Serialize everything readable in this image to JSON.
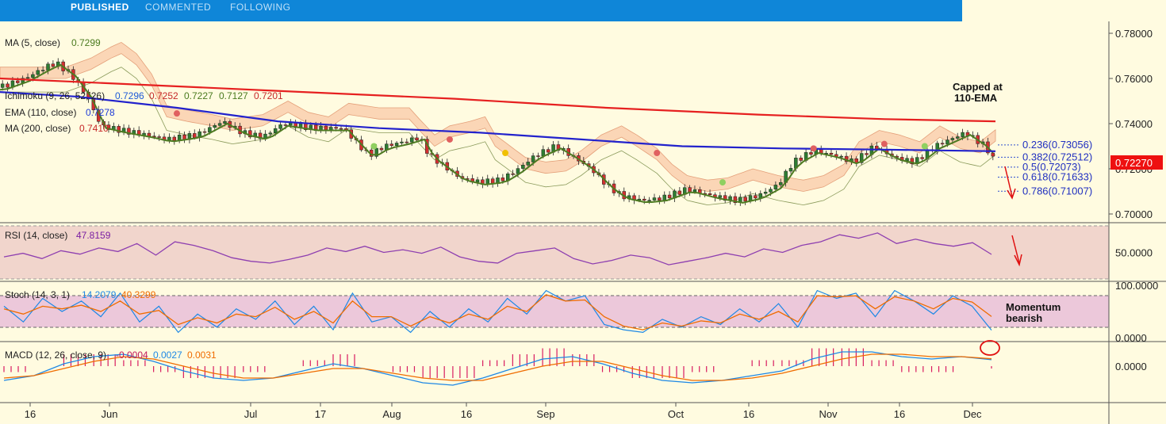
{
  "tabs": {
    "published": "PUBLISHED",
    "commented": "COMMENTED",
    "following": "FOLLOWING"
  },
  "legends": {
    "ma5": "MA (5, close)",
    "ma5_val": "0.7299",
    "ichi": "Ichimoku (9, 26, 52, 26)",
    "ichi_v1": "0.7296",
    "ichi_v2": "0.7252",
    "ichi_v3": "0.7227",
    "ichi_v4": "0.7127",
    "ichi_v5": "0.7201",
    "ema110": "EMA (110, close)",
    "ema110_val": "0.7278",
    "ma200": "MA (200, close)",
    "ma200_val": "0.7410",
    "rsi": "RSI (14, close)",
    "rsi_val": "47.8159",
    "stoch": "Stoch (14, 3, 1)",
    "stoch_v1": "14.2079",
    "stoch_v2": "40.3299",
    "macd": "MACD (12, 26, close, 9)",
    "macd_v1": "-0.0004",
    "macd_v2": "0.0027",
    "macd_v3": "0.0031"
  },
  "annotations": {
    "capped_line1": "Capped at",
    "capped_line2": "110-EMA",
    "momentum_line1": "Momentum",
    "momentum_line2": "bearish"
  },
  "current_price": "0.72270",
  "chart_data": [
    {
      "type": "candlestick",
      "ylim": [
        0.695,
        0.785
      ],
      "y_ticks": [
        "0.78000",
        "0.76000",
        "0.74000",
        "0.72000",
        "0.70000"
      ],
      "x_ticks": [
        "16",
        "Jun",
        "Jul",
        "17",
        "Aug",
        "16",
        "Sep",
        "Oct",
        "16",
        "Nov",
        "16",
        "Dec"
      ],
      "fib_levels": [
        {
          "label": "0.236(0.73056)",
          "value": 0.73056
        },
        {
          "label": "0.382(0.72512)",
          "value": 0.72512
        },
        {
          "label": "0.5(0.72073)",
          "value": 0.72073
        },
        {
          "label": "0.618(0.71633)",
          "value": 0.71633
        },
        {
          "label": "0.786(0.71007)",
          "value": 0.71007
        }
      ],
      "close_path": [
        [
          0,
          0.756
        ],
        [
          10,
          0.76
        ],
        [
          18,
          0.765
        ],
        [
          22,
          0.767
        ],
        [
          28,
          0.762
        ],
        [
          34,
          0.753
        ],
        [
          40,
          0.739
        ],
        [
          48,
          0.737
        ],
        [
          58,
          0.735
        ],
        [
          66,
          0.733
        ],
        [
          78,
          0.735
        ],
        [
          88,
          0.741
        ],
        [
          96,
          0.736
        ],
        [
          104,
          0.734
        ],
        [
          112,
          0.74
        ],
        [
          124,
          0.738
        ],
        [
          136,
          0.738
        ],
        [
          140,
          0.733
        ],
        [
          146,
          0.726
        ],
        [
          152,
          0.73
        ],
        [
          160,
          0.732
        ],
        [
          166,
          0.734
        ],
        [
          170,
          0.726
        ],
        [
          176,
          0.721
        ],
        [
          182,
          0.716
        ],
        [
          190,
          0.714
        ],
        [
          198,
          0.715
        ],
        [
          204,
          0.719
        ],
        [
          212,
          0.726
        ],
        [
          220,
          0.73
        ],
        [
          226,
          0.726
        ],
        [
          234,
          0.72
        ],
        [
          240,
          0.713
        ],
        [
          246,
          0.708
        ],
        [
          254,
          0.706
        ],
        [
          262,
          0.707
        ],
        [
          272,
          0.711
        ],
        [
          282,
          0.708
        ],
        [
          292,
          0.706
        ],
        [
          300,
          0.708
        ],
        [
          308,
          0.713
        ],
        [
          314,
          0.723
        ],
        [
          322,
          0.728
        ],
        [
          330,
          0.726
        ],
        [
          338,
          0.723
        ],
        [
          346,
          0.73
        ],
        [
          354,
          0.725
        ],
        [
          362,
          0.723
        ],
        [
          370,
          0.73
        ],
        [
          376,
          0.733
        ],
        [
          382,
          0.736
        ],
        [
          386,
          0.733
        ],
        [
          390,
          0.73
        ],
        [
          394,
          0.7227
        ]
      ],
      "ema110": [
        [
          0,
          0.754
        ],
        [
          30,
          0.752
        ],
        [
          70,
          0.747
        ],
        [
          110,
          0.741
        ],
        [
          150,
          0.738
        ],
        [
          190,
          0.736
        ],
        [
          230,
          0.733
        ],
        [
          270,
          0.73
        ],
        [
          310,
          0.729
        ],
        [
          350,
          0.7285
        ],
        [
          394,
          0.7278
        ]
      ],
      "ma200": [
        [
          0,
          0.76
        ],
        [
          60,
          0.757
        ],
        [
          120,
          0.754
        ],
        [
          180,
          0.751
        ],
        [
          240,
          0.747
        ],
        [
          300,
          0.744
        ],
        [
          350,
          0.742
        ],
        [
          394,
          0.741
        ]
      ]
    },
    {
      "type": "line",
      "name": "RSI",
      "ylim": [
        20,
        80
      ],
      "y_ticks": [
        "50.0000"
      ],
      "values": [
        45,
        49,
        43,
        52,
        48,
        55,
        51,
        60,
        47,
        62,
        58,
        52,
        44,
        40,
        38,
        42,
        47,
        55,
        51,
        57,
        50,
        53,
        49,
        56,
        45,
        40,
        38,
        49,
        52,
        55,
        43,
        37,
        41,
        47,
        44,
        36,
        40,
        44,
        49,
        45,
        54,
        50,
        58,
        62,
        70,
        66,
        72,
        60,
        65,
        60,
        57,
        61,
        47.8
      ]
    },
    {
      "type": "line",
      "name": "Stoch",
      "ylim": [
        0,
        100
      ],
      "y_ticks": [
        "100.0000",
        "0.0000"
      ],
      "k": [
        60,
        30,
        75,
        50,
        70,
        40,
        85,
        30,
        60,
        10,
        45,
        20,
        55,
        35,
        70,
        25,
        60,
        15,
        85,
        30,
        40,
        10,
        50,
        20,
        55,
        30,
        75,
        45,
        90,
        70,
        80,
        25,
        15,
        10,
        35,
        20,
        40,
        25,
        55,
        30,
        65,
        20,
        90,
        75,
        85,
        40,
        90,
        70,
        45,
        80,
        60,
        14.2
      ],
      "d": [
        55,
        45,
        60,
        55,
        62,
        50,
        70,
        45,
        52,
        25,
        38,
        28,
        45,
        40,
        58,
        35,
        50,
        28,
        70,
        40,
        40,
        22,
        40,
        28,
        45,
        35,
        60,
        50,
        82,
        70,
        72,
        40,
        22,
        15,
        28,
        22,
        32,
        28,
        45,
        35,
        50,
        30,
        80,
        78,
        80,
        55,
        78,
        70,
        55,
        75,
        68,
        40.3
      ]
    },
    {
      "type": "macd",
      "name": "MACD",
      "ylim": [
        -0.012,
        0.012
      ],
      "y_ticks": [
        "0.0000"
      ],
      "macd": [
        -0.006,
        -0.004,
        0.001,
        0.004,
        0.005,
        0.002,
        -0.002,
        -0.005,
        -0.006,
        -0.005,
        -0.002,
        0.001,
        -0.001,
        -0.004,
        -0.007,
        -0.008,
        -0.005,
        -0.001,
        0.003,
        0.004,
        0.001,
        -0.003,
        -0.006,
        -0.007,
        -0.006,
        -0.004,
        -0.002,
        0.003,
        0.006,
        0.006,
        0.004,
        0.003,
        0.004,
        0.0027
      ],
      "signal": [
        -0.005,
        -0.004,
        -0.001,
        0.002,
        0.004,
        0.003,
        0.0,
        -0.003,
        -0.005,
        -0.005,
        -0.003,
        -0.001,
        -0.001,
        -0.003,
        -0.005,
        -0.006,
        -0.006,
        -0.003,
        0.0,
        0.002,
        0.002,
        -0.001,
        -0.004,
        -0.006,
        -0.006,
        -0.005,
        -0.003,
        0.0,
        0.003,
        0.005,
        0.005,
        0.004,
        0.004,
        0.0031
      ]
    }
  ]
}
